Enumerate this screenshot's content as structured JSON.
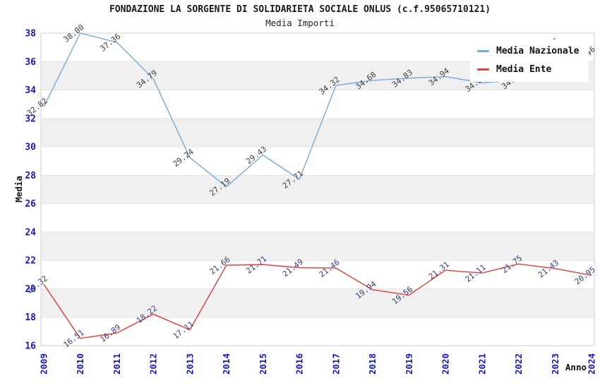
{
  "header": {
    "title": "FONDAZIONE LA SORGENTE DI SOLIDARIETA SOCIALE ONLUS (c.f.95065710121)",
    "subtitle": "Media Importi"
  },
  "legend": {
    "position": "upper-right",
    "items": [
      {
        "label": "Media Nazionale",
        "color": "#76a9dd"
      },
      {
        "label": "Media Ente",
        "color": "#e63b3b"
      }
    ]
  },
  "chart_data": {
    "type": "line",
    "title": "FONDAZIONE LA SORGENTE DI SOLIDARIETA SOCIALE ONLUS (c.f.95065710121)",
    "subtitle": "Media Importi",
    "xlabel": "Anno",
    "ylabel": "Media",
    "categories": [
      "2009",
      "2010",
      "2011",
      "2012",
      "2013",
      "2014",
      "2015",
      "2016",
      "2017",
      "2018",
      "2019",
      "2020",
      "2021",
      "2022",
      "2023",
      "2024"
    ],
    "series": [
      {
        "name": "Media Nazionale",
        "color": "#76a9dd",
        "label_color": "#3d3d3d",
        "values": [
          32.82,
          38.0,
          37.36,
          34.79,
          29.24,
          27.19,
          29.43,
          27.71,
          34.32,
          34.68,
          34.83,
          34.94,
          34.5,
          34.7,
          37.05,
          36.46
        ],
        "labels_hidden_by_legend": [
          12,
          13
        ]
      },
      {
        "name": "Media Ente",
        "color": "#e63b3b",
        "label_color": "#3c3c82",
        "values": [
          20.32,
          16.51,
          16.89,
          18.22,
          17.11,
          21.66,
          21.71,
          21.49,
          21.46,
          19.94,
          19.56,
          21.31,
          21.11,
          21.75,
          21.43,
          20.95
        ]
      }
    ],
    "ylim": [
      16,
      38
    ],
    "ytick_step": 2,
    "grid": {
      "band_color": "#f0f0f0",
      "line_color": "#e4e4e4",
      "border_color": "#cfcfcf",
      "bands": [
        [
          18,
          20
        ],
        [
          22,
          24
        ],
        [
          26,
          28
        ],
        [
          30,
          32
        ],
        [
          34,
          36
        ]
      ]
    },
    "tick_label_color": "#1515cc",
    "axis_name_color": "#111111",
    "legend_position": "upper right"
  }
}
